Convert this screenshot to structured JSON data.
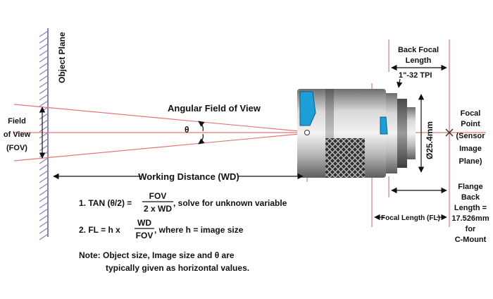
{
  "labels": {
    "object_plane": "Object Plane",
    "fov_line1": "Field",
    "fov_line2": "of View",
    "fov_line3": "(FOV)",
    "angular_fov": "Angular Field of View",
    "theta": "θ",
    "working_distance": "Working Distance (WD)",
    "back_focal_line1": "Back Focal",
    "back_focal_line2": "Length",
    "thread": "1\"-32 TPI",
    "focal_point_line1": "Focal",
    "focal_point_line2": "Point",
    "focal_point_line3": "(Sensor",
    "focal_point_line4": "Image",
    "focal_point_line5": "Plane)",
    "diameter": "Ø25.4mm",
    "focal_length": "Focal Length (FL)",
    "flange_line1": "Flange",
    "flange_line2": "Back",
    "flange_line3": "Length =",
    "flange_line4": "17.526mm",
    "flange_line5": "for",
    "flange_line6": "C-Mount"
  },
  "formulas": {
    "f1_prefix": "1. TAN (θ/2) =",
    "f1_num": "FOV",
    "f1_den": "2 x WD",
    "f1_suffix": ", solve for unknown variable",
    "f2_prefix": "2. FL = h x",
    "f2_num": "WD",
    "f2_den": "FOV",
    "f2_suffix": ", where h = image size",
    "note_line1": "Note: Object size, Image size and θ are",
    "note_line2": "typically given as horizontal values."
  },
  "colors": {
    "ray": "#e07a7a",
    "object_plane": "#8a7fc0",
    "lens_blue": "#1a9fd8",
    "lens_body": "#9a9a9a",
    "lens_dark": "#5a5a5a",
    "ink": "#111111"
  }
}
